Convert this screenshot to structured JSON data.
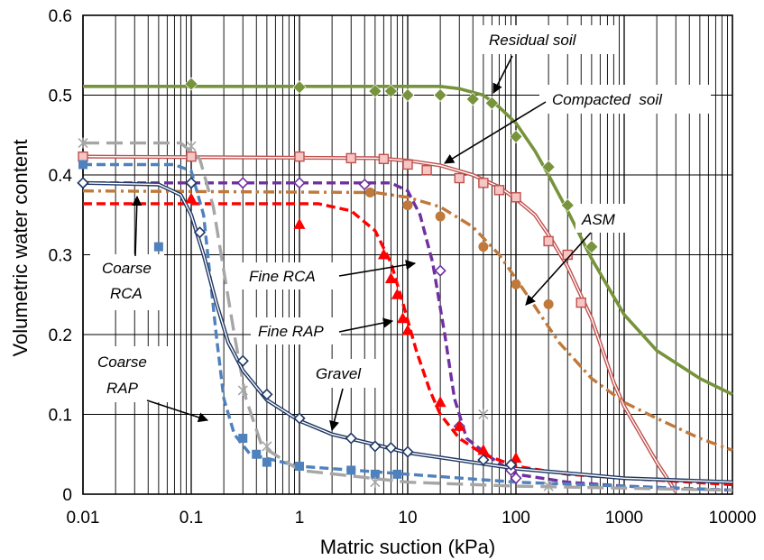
{
  "chart_data": {
    "type": "line",
    "xlabel": "Matric suction (kPa)",
    "ylabel": "Volumetric water content",
    "xscale": "log",
    "xlim": [
      0.01,
      10000
    ],
    "ylim": [
      0,
      0.6
    ],
    "x_ticks": [
      "0.01",
      "0.1",
      "1",
      "10",
      "100",
      "1000",
      "10000"
    ],
    "y_ticks": [
      "0",
      "0.1",
      "0.2",
      "0.3",
      "0.4",
      "0.5",
      "0.6"
    ],
    "grid": true,
    "series": [
      {
        "name": "Residual soil",
        "color": "#77933c",
        "line": "solid",
        "marker": "diamond-filled",
        "points": [
          [
            0.1,
            0.514
          ],
          [
            1,
            0.51
          ],
          [
            5,
            0.505
          ],
          [
            7,
            0.505
          ],
          [
            10,
            0.5
          ],
          [
            20,
            0.5
          ],
          [
            40,
            0.495
          ],
          [
            60,
            0.49
          ],
          [
            100,
            0.448
          ],
          [
            200,
            0.41
          ],
          [
            300,
            0.362
          ],
          [
            500,
            0.31
          ]
        ],
        "fit": [
          [
            0.01,
            0.511
          ],
          [
            20,
            0.511
          ],
          [
            30,
            0.508
          ],
          [
            50,
            0.5
          ],
          [
            70,
            0.485
          ],
          [
            100,
            0.465
          ],
          [
            150,
            0.43
          ],
          [
            200,
            0.4
          ],
          [
            300,
            0.355
          ],
          [
            500,
            0.295
          ],
          [
            1000,
            0.225
          ],
          [
            2000,
            0.18
          ],
          [
            5000,
            0.145
          ],
          [
            10000,
            0.125
          ]
        ]
      },
      {
        "name": "Compacted soil",
        "color": "#c0504d",
        "line": "double",
        "marker": "square-open",
        "points": [
          [
            0.01,
            0.423
          ],
          [
            0.1,
            0.423
          ],
          [
            1,
            0.423
          ],
          [
            3,
            0.421
          ],
          [
            6,
            0.42
          ],
          [
            10,
            0.413
          ],
          [
            15,
            0.406
          ],
          [
            30,
            0.396
          ],
          [
            50,
            0.39
          ],
          [
            70,
            0.381
          ],
          [
            100,
            0.372
          ],
          [
            200,
            0.317
          ],
          [
            300,
            0.3
          ],
          [
            400,
            0.24
          ]
        ],
        "fit": [
          [
            0.01,
            0.423
          ],
          [
            5,
            0.421
          ],
          [
            10,
            0.418
          ],
          [
            20,
            0.412
          ],
          [
            40,
            0.4
          ],
          [
            70,
            0.385
          ],
          [
            100,
            0.37
          ],
          [
            150,
            0.35
          ],
          [
            200,
            0.325
          ],
          [
            300,
            0.285
          ],
          [
            500,
            0.22
          ],
          [
            800,
            0.14
          ],
          [
            1000,
            0.11
          ],
          [
            2000,
            0.04
          ],
          [
            3000,
            0.003
          ]
        ]
      },
      {
        "name": "ASM",
        "color": "#c0793b",
        "line": "dashdot",
        "marker": "circle-filled",
        "points": [
          [
            4.5,
            0.378
          ],
          [
            10,
            0.362
          ],
          [
            20,
            0.348
          ],
          [
            50,
            0.31
          ],
          [
            100,
            0.263
          ],
          [
            200,
            0.238
          ]
        ],
        "fit": [
          [
            0.01,
            0.38
          ],
          [
            5,
            0.378
          ],
          [
            10,
            0.372
          ],
          [
            20,
            0.36
          ],
          [
            40,
            0.335
          ],
          [
            70,
            0.3
          ],
          [
            100,
            0.27
          ],
          [
            150,
            0.235
          ],
          [
            250,
            0.19
          ],
          [
            500,
            0.145
          ],
          [
            1000,
            0.115
          ],
          [
            2000,
            0.095
          ],
          [
            5000,
            0.07
          ],
          [
            10000,
            0.055
          ]
        ]
      },
      {
        "name": "Fine RCA",
        "color": "#7030a0",
        "line": "dashed",
        "marker": "diamond-open",
        "points": [
          [
            0.01,
            0.39
          ],
          [
            0.1,
            0.39
          ],
          [
            0.3,
            0.39
          ],
          [
            1,
            0.39
          ],
          [
            4,
            0.388
          ],
          [
            20,
            0.28
          ],
          [
            30,
            0.085
          ],
          [
            90,
            0.03
          ],
          [
            100,
            0.02
          ]
        ],
        "fit": [
          [
            0.01,
            0.39
          ],
          [
            7,
            0.39
          ],
          [
            10,
            0.38
          ],
          [
            13,
            0.35
          ],
          [
            17,
            0.29
          ],
          [
            22,
            0.2
          ],
          [
            27,
            0.12
          ],
          [
            35,
            0.07
          ],
          [
            60,
            0.045
          ],
          [
            100,
            0.025
          ],
          [
            300,
            0.015
          ],
          [
            1000,
            0.01
          ],
          [
            10000,
            0.005
          ]
        ]
      },
      {
        "name": "Fine RAP",
        "color": "#ff0000",
        "line": "dashed",
        "marker": "triangle-filled",
        "points": [
          [
            0.1,
            0.37
          ],
          [
            1,
            0.338
          ],
          [
            6,
            0.3
          ],
          [
            7,
            0.27
          ],
          [
            8,
            0.25
          ],
          [
            9,
            0.22
          ],
          [
            10,
            0.205
          ],
          [
            20,
            0.115
          ],
          [
            30,
            0.085
          ],
          [
            50,
            0.055
          ],
          [
            100,
            0.045
          ]
        ],
        "fit": [
          [
            0.01,
            0.364
          ],
          [
            1.5,
            0.364
          ],
          [
            3,
            0.355
          ],
          [
            5,
            0.33
          ],
          [
            7,
            0.29
          ],
          [
            9,
            0.24
          ],
          [
            12,
            0.18
          ],
          [
            16,
            0.13
          ],
          [
            20,
            0.1
          ],
          [
            30,
            0.07
          ],
          [
            50,
            0.05
          ],
          [
            100,
            0.035
          ],
          [
            300,
            0.025
          ],
          [
            1000,
            0.02
          ],
          [
            10000,
            0.012
          ]
        ]
      },
      {
        "name": "Coarse RAP",
        "color": "#4f81bd",
        "line": "dashed",
        "marker": "square-filled",
        "points": [
          [
            0.01,
            0.413
          ],
          [
            0.05,
            0.31
          ],
          [
            0.3,
            0.07
          ],
          [
            0.4,
            0.05
          ],
          [
            0.5,
            0.04
          ],
          [
            1,
            0.035
          ],
          [
            3,
            0.03
          ],
          [
            5,
            0.025
          ],
          [
            8,
            0.025
          ]
        ],
        "fit": [
          [
            0.01,
            0.413
          ],
          [
            0.07,
            0.413
          ],
          [
            0.1,
            0.405
          ],
          [
            0.13,
            0.35
          ],
          [
            0.17,
            0.2
          ],
          [
            0.2,
            0.12
          ],
          [
            0.25,
            0.075
          ],
          [
            0.35,
            0.05
          ],
          [
            1,
            0.035
          ],
          [
            10,
            0.025
          ],
          [
            100,
            0.015
          ],
          [
            1000,
            0.01
          ],
          [
            10000,
            0.005
          ]
        ]
      },
      {
        "name": "Coarse RCA",
        "color": "#a6a6a6",
        "line": "longdash",
        "marker": "asterisk",
        "points": [
          [
            0.01,
            0.44
          ],
          [
            0.1,
            0.436
          ],
          [
            0.3,
            0.13
          ],
          [
            0.5,
            0.06
          ],
          [
            5,
            0.015
          ],
          [
            50,
            0.1
          ],
          [
            200,
            0.01
          ]
        ],
        "fit": [
          [
            0.01,
            0.44
          ],
          [
            0.08,
            0.44
          ],
          [
            0.12,
            0.42
          ],
          [
            0.16,
            0.36
          ],
          [
            0.2,
            0.28
          ],
          [
            0.25,
            0.2
          ],
          [
            0.32,
            0.12
          ],
          [
            0.45,
            0.06
          ],
          [
            1,
            0.03
          ],
          [
            10,
            0.015
          ],
          [
            100,
            0.01
          ],
          [
            10000,
            0.005
          ]
        ]
      },
      {
        "name": "Gravel",
        "color": "#1f3864",
        "line": "double",
        "marker": "diamond-open",
        "points": [
          [
            0.01,
            0.39
          ],
          [
            0.1,
            0.39
          ],
          [
            0.12,
            0.328
          ],
          [
            0.3,
            0.167
          ],
          [
            0.5,
            0.125
          ],
          [
            1,
            0.095
          ],
          [
            3,
            0.07
          ],
          [
            5,
            0.06
          ],
          [
            7,
            0.058
          ],
          [
            10,
            0.053
          ],
          [
            50,
            0.043
          ],
          [
            90,
            0.037
          ]
        ],
        "fit": [
          [
            0.01,
            0.39
          ],
          [
            0.05,
            0.388
          ],
          [
            0.08,
            0.375
          ],
          [
            0.1,
            0.35
          ],
          [
            0.13,
            0.3
          ],
          [
            0.17,
            0.24
          ],
          [
            0.22,
            0.19
          ],
          [
            0.3,
            0.155
          ],
          [
            0.5,
            0.118
          ],
          [
            1,
            0.092
          ],
          [
            2,
            0.075
          ],
          [
            5,
            0.062
          ],
          [
            10,
            0.052
          ],
          [
            50,
            0.038
          ],
          [
            100,
            0.032
          ],
          [
            1000,
            0.02
          ],
          [
            10000,
            0.015
          ]
        ]
      }
    ],
    "annotations": [
      {
        "text": "Residual soil"
      },
      {
        "text": "Compacted  soil"
      },
      {
        "text": "ASM"
      },
      {
        "text": "Fine RCA"
      },
      {
        "text": "Fine RAP"
      },
      {
        "text": "Gravel"
      },
      {
        "text": "Coarse"
      },
      {
        "text": "RCA"
      },
      {
        "text": "Coarse"
      },
      {
        "text": "RAP"
      }
    ]
  }
}
